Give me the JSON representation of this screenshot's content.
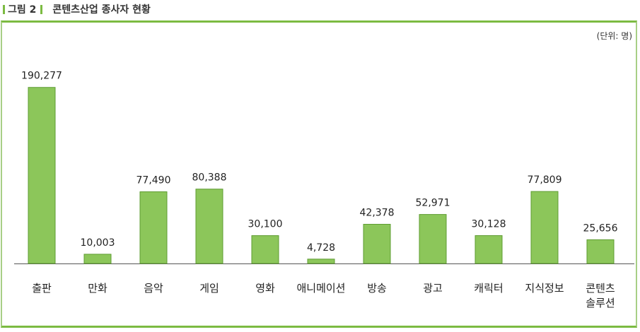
{
  "figure": {
    "label": "그림 2",
    "title": "콘텐츠산업 종사자 현황"
  },
  "colors": {
    "accent": "#7cbb42",
    "bar_fill": "#8cc65a",
    "bar_stroke": "#5e9c31",
    "axis": "#555555"
  },
  "chart_data": {
    "type": "bar",
    "title": "콘텐츠산업 종사자 현황",
    "unit_note": "(단위: 명)",
    "categories": [
      "출판",
      "만화",
      "음악",
      "게임",
      "영화",
      "애니메이션",
      "방송",
      "광고",
      "캐릭터",
      "지식정보",
      "콘텐츠 솔루션"
    ],
    "values": [
      190277,
      10003,
      77490,
      80388,
      30100,
      4728,
      42378,
      52971,
      30128,
      77809,
      25656
    ],
    "value_labels": [
      "190,277",
      "10,003",
      "77,490",
      "80,388",
      "30,100",
      "4,728",
      "42,378",
      "52,971",
      "30,128",
      "77,809",
      "25,656"
    ],
    "ylim": [
      0,
      200000
    ],
    "xlabel": "",
    "ylabel": "",
    "grid": false,
    "legend": "none"
  }
}
